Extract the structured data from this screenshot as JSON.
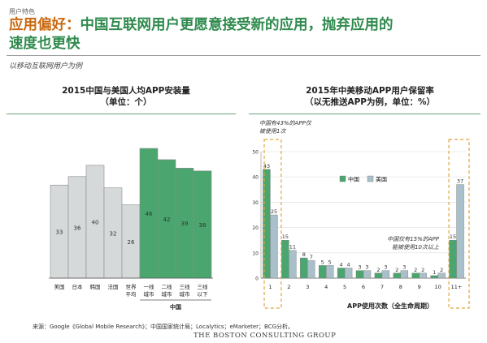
{
  "tag": "用户特色",
  "headline": {
    "highlight": "应用偏好：",
    "line1_rest": "中国互联网用户更愿意接受新的应用，抛弃应用的",
    "line2": "速度也更快"
  },
  "subtitle": "以移动互联网用户为例",
  "source": "来源：Google《Global Mobile Research》；中国国家统计局；Localytics；eMarketer；BCG分析。",
  "logo": "THE BOSTON CONSULTING GROUP",
  "colors": {
    "green": "#4aa66e",
    "gray": "#d6d9d9",
    "blue_gray": "#a9bfc9",
    "orange": "#e0a43a"
  },
  "chart_data": [
    {
      "type": "bar",
      "title": "2015中国与美国人均APP安装量",
      "subtitle": "（单位：个）",
      "categories": [
        "美国",
        "日本",
        "韩国",
        "法国",
        "世界\n平均",
        "一线\n城市",
        "二线\n城市",
        "三线\n城市",
        "三线\n以下"
      ],
      "values": [
        33,
        36,
        40,
        32,
        26,
        46,
        42,
        39,
        38
      ],
      "group_label": "中国",
      "group_start_index": 5,
      "ylim": [
        0,
        50
      ],
      "grid": false
    },
    {
      "type": "bar",
      "title": "2015年中美移动APP用户保留率",
      "subtitle": "（以无推送APP为例，单位：%）",
      "categories": [
        "1",
        "2",
        "3",
        "4",
        "5",
        "6",
        "7",
        "8",
        "9",
        "10",
        "11+"
      ],
      "series": [
        {
          "name": "中国",
          "values": [
            43,
            15,
            8,
            5,
            4,
            3,
            2,
            2,
            2,
            1,
            15
          ]
        },
        {
          "name": "美国",
          "values": [
            25,
            11,
            7,
            5,
            4,
            3,
            3,
            3,
            2,
            2,
            37
          ]
        }
      ],
      "yticks": [
        0,
        10,
        20,
        30,
        40,
        50
      ],
      "ylim": [
        0,
        50
      ],
      "xlabel": "APP使用次数（全生命周期）",
      "legend_position": "top-left",
      "grid": true,
      "annotations": [
        "中国有43%的APP仅被使用1次",
        "中国仅有15%的APP能被使用10次以上"
      ]
    }
  ]
}
